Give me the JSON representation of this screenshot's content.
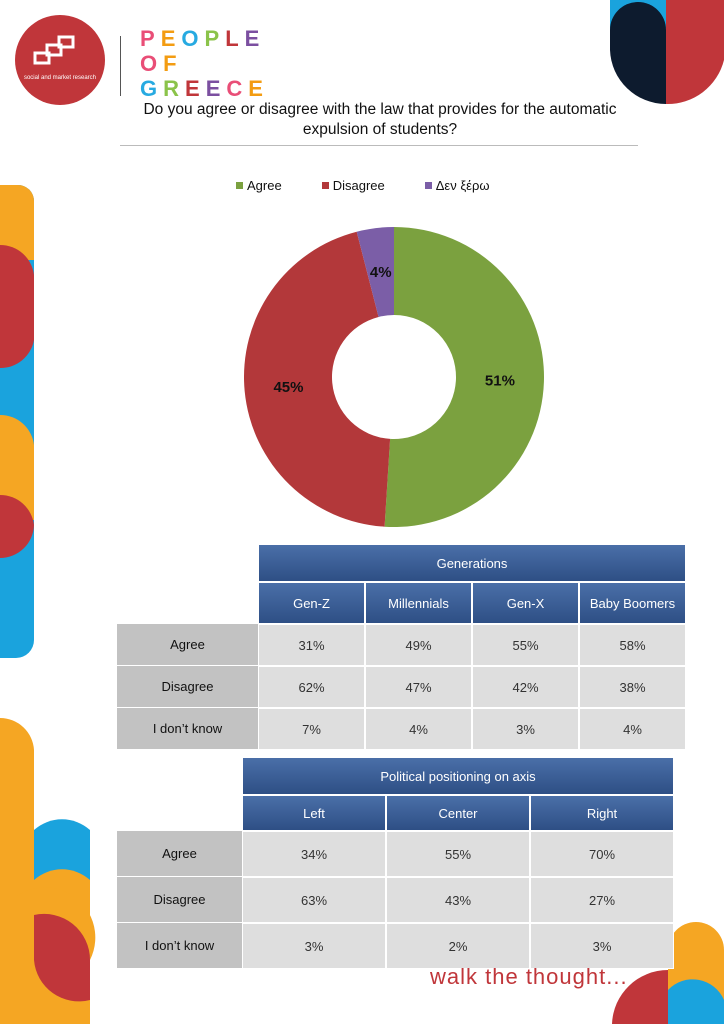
{
  "brand": {
    "logo_text": "social and market research",
    "name_lines": [
      "PEOPLE",
      "OF",
      "GREECE"
    ],
    "name_colors": [
      "#e94e77",
      "#f39c12",
      "#27aae1",
      "#8bc34a",
      "#c0363a",
      "#7b4fa0"
    ]
  },
  "title": "Do you agree or disagree with the law that provides for the automatic expulsion of students?",
  "chart_data": {
    "type": "pie",
    "style": "donut",
    "legend_position": "top",
    "series": [
      {
        "name": "Agree",
        "value": 51,
        "label": "51%",
        "color": "#7ba13f"
      },
      {
        "name": "Disagree",
        "value": 45,
        "label": "45%",
        "color": "#b3383a"
      },
      {
        "name": "Δεν ξέρω",
        "value": 4,
        "label": "4%",
        "color": "#7b5ea7"
      }
    ]
  },
  "generations_table": {
    "title": "Generations",
    "columns": [
      "Gen-Z",
      "Millennials",
      "Gen-X",
      "Baby Boomers"
    ],
    "rows": [
      {
        "label": "Agree",
        "values": [
          "31%",
          "49%",
          "55%",
          "58%"
        ]
      },
      {
        "label": "Disagree",
        "values": [
          "62%",
          "47%",
          "42%",
          "38%"
        ]
      },
      {
        "label": "I don’t know",
        "values": [
          "7%",
          "4%",
          "3%",
          "4%"
        ]
      }
    ]
  },
  "political_table": {
    "title": "Political positioning on axis",
    "columns": [
      "Left",
      "Center",
      "Right"
    ],
    "rows": [
      {
        "label": "Agree",
        "values": [
          "34%",
          "55%",
          "70%"
        ]
      },
      {
        "label": "Disagree",
        "values": [
          "63%",
          "43%",
          "27%"
        ]
      },
      {
        "label": "I don’t know",
        "values": [
          "3%",
          "2%",
          "3%"
        ]
      }
    ]
  },
  "footer": {
    "tagline": "walk the thought..."
  },
  "colors": {
    "accent_red": "#c0363a",
    "accent_orange": "#f5a623",
    "accent_blue": "#1aa3dd",
    "header_blue": "#3a5f98",
    "navy": "#0d1b2e"
  }
}
